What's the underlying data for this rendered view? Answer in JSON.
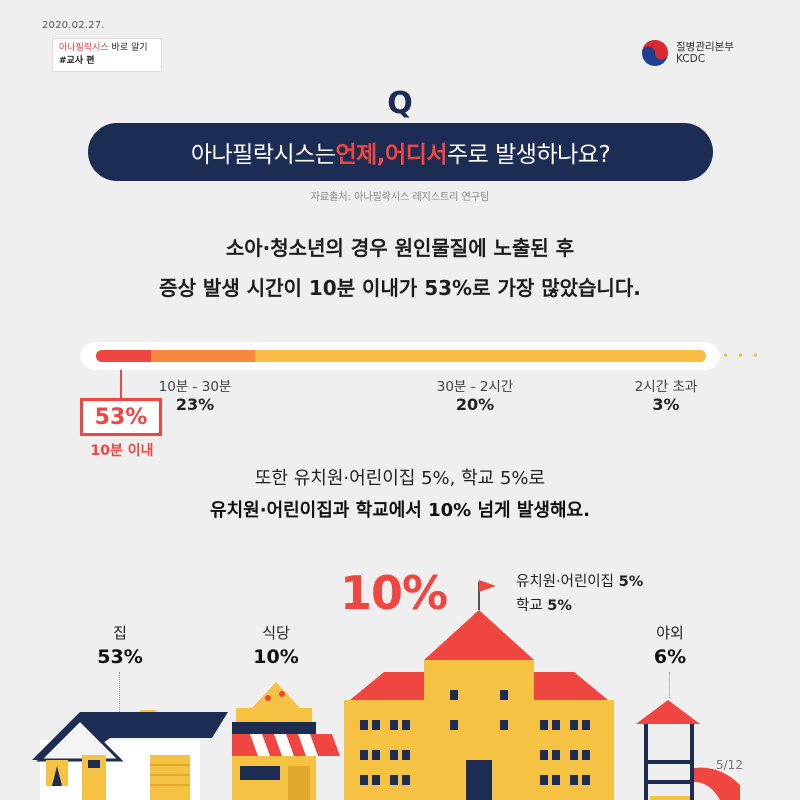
{
  "header": {
    "date": "2020.02.27.",
    "series_red": "아나필락시스",
    "series_rest": " 바로 알기",
    "series_edition": "#교사 편",
    "org_name_ko": "질병관리본부",
    "org_name_en": "KCDC"
  },
  "question": {
    "mark": "Q",
    "part1": "아나필락시스는 ",
    "highlight1": "언제,",
    "space": " ",
    "highlight2": "어디서",
    "part2": " 주로 발생하나요?",
    "source": "자료출처: 아나필락시스 레지스트리 연구팀"
  },
  "lead": {
    "line1": "소아·청소년의 경우 원인물질에 노출된 후",
    "line2": "증상 발생 시간이 10분 이내가 53%로 가장 많았습니다."
  },
  "timeline": {
    "segments": [
      {
        "label": "10분 이내",
        "value": "53%",
        "percent": 53,
        "color": "#f04641"
      },
      {
        "label": "10분 - 30분",
        "value": "23%",
        "percent": 23,
        "color": "#f6873d"
      },
      {
        "label": "30분 - 2시간",
        "value": "20%",
        "percent": 20,
        "color": "#fcbd46"
      },
      {
        "label": "2시간 초과",
        "value": "3%",
        "percent": 3,
        "color": "#fcbd46"
      }
    ]
  },
  "middle": {
    "line1": "또한 유치원·어린이집 5%, 학교 5%로",
    "line2": "유치원·어린이집과 학교에서 10% 넘게 발생해요."
  },
  "places": {
    "home": {
      "name": "집",
      "pct": "53%"
    },
    "restaurant": {
      "name": "식당",
      "pct": "10%"
    },
    "school": {
      "pct": "10%",
      "kinder_label": "유치원·어린이집",
      "kinder_pct": "5%",
      "school_label": "학교",
      "school_pct": "5%"
    },
    "outdoor": {
      "name": "야외",
      "pct": "6%"
    }
  },
  "page": "5/12",
  "colors": {
    "navy": "#1d2c53",
    "red": "#f04641",
    "orange": "#f6873d",
    "yellow": "#fcbd46",
    "building": "#f6c244"
  }
}
